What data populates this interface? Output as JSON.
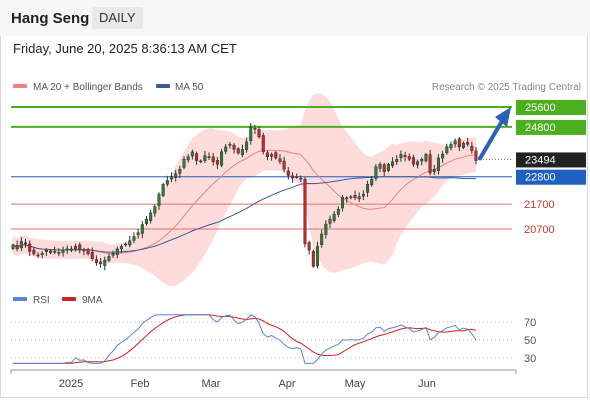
{
  "header": {
    "symbol": "Hang Seng",
    "period": "DAILY",
    "datetime": "Friday, June 20, 2025 8:36:13 AM CET"
  },
  "colors": {
    "up": "#2e7d32",
    "down": "#c62828",
    "ma20": "#f08080",
    "band": "#ffd6d6",
    "ma50": "#3b5b95",
    "resistance": "#4caf1f",
    "support": "#1f5fbf",
    "pivot": "#e07070",
    "current": "#222222",
    "rsi": "#5b84d6",
    "rsi_ma": "#d02020",
    "arrow": "#2962b5"
  },
  "chart_data": [
    {
      "type": "candlestick",
      "legend": [
        {
          "name": "MA 20 + Bollinger Bands",
          "color": "#f08080"
        },
        {
          "name": "MA 50",
          "color": "#3b5b95"
        }
      ],
      "watermark": "Research © 2025 Trading Central",
      "x_tick_labels": [
        "2025",
        "Feb",
        "Mar",
        "Apr",
        "May",
        "Jun"
      ],
      "current_price": 23494,
      "levels": [
        {
          "value": 25600,
          "label": "25600",
          "kind": "resistance"
        },
        {
          "value": 24800,
          "label": "24800",
          "kind": "resistance"
        },
        {
          "value": 22800,
          "label": "22800",
          "kind": "support"
        },
        {
          "value": 21700,
          "label": "21700",
          "kind": "pivot"
        },
        {
          "value": 20700,
          "label": "20700",
          "kind": "pivot"
        }
      ],
      "forecast_arrow": {
        "from": 23494,
        "to": 25600
      },
      "closes": [
        20060,
        19900,
        20200,
        20100,
        19800,
        19700,
        19650,
        19720,
        19850,
        19750,
        19800,
        19760,
        19840,
        19900,
        19900,
        20010,
        19860,
        19870,
        19700,
        19500,
        19350,
        19300,
        19450,
        19600,
        19720,
        19900,
        20000,
        20100,
        20230,
        20400,
        20550,
        20880,
        21100,
        21350,
        21600,
        22100,
        22500,
        22650,
        22800,
        22920,
        23100,
        23500,
        23600,
        23800,
        23450,
        23400,
        23650,
        23600,
        23400,
        23300,
        23800,
        24000,
        24100,
        23900,
        23750,
        23900,
        24200,
        24800,
        24700,
        24400,
        23800,
        23600,
        23700,
        23550,
        23400,
        23100,
        22850,
        22750,
        22800,
        22700,
        20100,
        19850,
        19200,
        20000,
        20500,
        20900,
        21100,
        21300,
        21500,
        21980,
        21950,
        22000,
        21950,
        22000,
        22100,
        22500,
        22700,
        23200,
        23300,
        23000,
        23300,
        23400,
        23500,
        23700,
        23600,
        23500,
        23300,
        23400,
        23500,
        23700,
        22950,
        23100,
        23550,
        23700,
        24000,
        24100,
        24250,
        24000,
        24150,
        24100,
        23850,
        23450
      ]
    },
    {
      "type": "line",
      "name": "RSI",
      "series": [
        {
          "name": "RSI",
          "color": "#5b84d6"
        },
        {
          "name": "9MA",
          "color": "#d02020"
        }
      ],
      "y_ticks": [
        70,
        50,
        30
      ],
      "ylim": [
        20,
        80
      ]
    }
  ]
}
